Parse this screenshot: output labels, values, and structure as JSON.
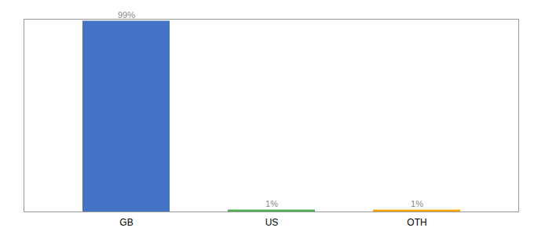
{
  "chart_data": {
    "type": "bar",
    "categories": [
      "GB",
      "US",
      "OTH"
    ],
    "values": [
      99,
      1,
      1
    ],
    "value_labels": [
      "99%",
      "1%",
      "1%"
    ],
    "colors": [
      "#4472C4",
      "#4CAF50",
      "#FFA500"
    ],
    "ylim": [
      0,
      100
    ],
    "data_labels": true,
    "tick_labels": "x",
    "grid": false
  }
}
